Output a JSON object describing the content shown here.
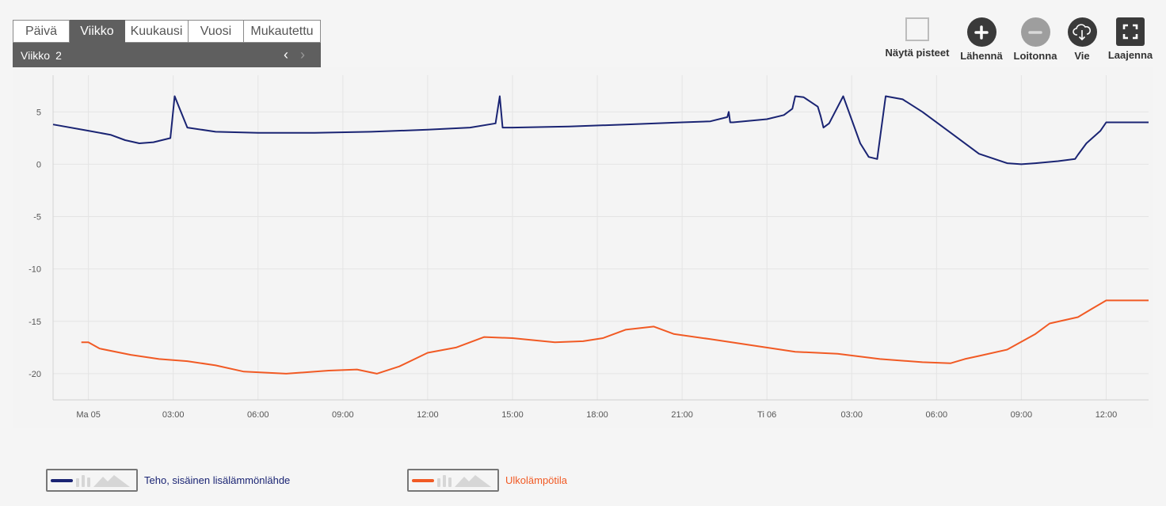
{
  "period_tabs": [
    "Päivä",
    "Viikko",
    "Kuukausi",
    "Vuosi",
    "Mukautettu"
  ],
  "active_tab": "Viikko",
  "week": {
    "label": "Viikko",
    "number": "2",
    "prev_symbol": "‹",
    "next_symbol": "›"
  },
  "toolbar": {
    "show_points": "Näytä pisteet",
    "zoom_in": "Lähennä",
    "zoom_out": "Loitonna",
    "export": "Vie",
    "expand": "Laajenna"
  },
  "icons": {
    "show_points": "checkbox-icon",
    "zoom_in": "plus-icon",
    "zoom_out": "minus-icon",
    "export": "cloud-download-icon",
    "expand": "fullscreen-icon"
  },
  "colors": {
    "series_heating": "#1a2473",
    "series_outdoor": "#f15a24",
    "grid": "#e4e4e4",
    "button_dark": "#3a3a3a",
    "button_disabled": "#9e9e9e"
  },
  "chart_data": {
    "type": "line",
    "title": "",
    "xlabel": "",
    "ylabel": "",
    "ylim": [
      -22.5,
      8.5
    ],
    "xlim_hours": [
      -1.25,
      37.5
    ],
    "y_ticks": [
      5,
      0,
      -5,
      -10,
      -15,
      -20
    ],
    "y_tick_labels": [
      "5",
      "0",
      "-5",
      "-10",
      "-15",
      "-20"
    ],
    "x_ticks_hours": [
      0,
      3,
      6,
      9,
      12,
      15,
      18,
      21,
      24,
      27,
      30,
      33,
      36
    ],
    "x_tick_labels": [
      "Ma 05",
      "03:00",
      "06:00",
      "09:00",
      "12:00",
      "15:00",
      "18:00",
      "21:00",
      "Ti 06",
      "03:00",
      "06:00",
      "09:00",
      "12:00"
    ],
    "grid": true,
    "legend_position": "bottom-left",
    "series": [
      {
        "name": "Teho, sisäinen lisälämmönlähde",
        "color": "#1a2473",
        "x": [
          -1.25,
          0.0,
          0.8,
          1.3,
          1.8,
          2.3,
          2.9,
          3.05,
          3.2,
          3.5,
          4.5,
          6.0,
          8.0,
          10.0,
          12.0,
          13.5,
          14.4,
          14.55,
          14.65,
          15.0,
          17.0,
          19.0,
          21.0,
          22.0,
          22.6,
          22.65,
          22.7,
          22.8,
          24.0,
          24.6,
          24.9,
          25.0,
          25.3,
          25.8,
          25.9,
          26.0,
          26.2,
          26.7,
          27.3,
          27.6,
          27.9,
          28.2,
          28.8,
          29.5,
          30.5,
          31.5,
          32.5,
          33.0,
          33.5,
          34.3,
          34.9,
          35.0,
          35.3,
          35.8,
          36.0,
          37.5
        ],
        "values": [
          3.8,
          3.2,
          2.8,
          2.3,
          2.0,
          2.1,
          2.5,
          6.5,
          5.5,
          3.5,
          3.1,
          3.0,
          3.0,
          3.1,
          3.3,
          3.5,
          3.9,
          6.5,
          3.5,
          3.5,
          3.6,
          3.8,
          4.0,
          4.1,
          4.5,
          5.0,
          4.0,
          4.0,
          4.3,
          4.7,
          5.3,
          6.5,
          6.4,
          5.5,
          4.6,
          3.5,
          3.9,
          6.5,
          2.0,
          0.7,
          0.5,
          6.5,
          6.2,
          5.0,
          3.0,
          1.0,
          0.1,
          0.0,
          0.1,
          0.3,
          0.5,
          0.9,
          2.0,
          3.2,
          4.0,
          4.0
        ]
      },
      {
        "name": "Ulkolämpötila",
        "color": "#f15a24",
        "x": [
          -0.25,
          0.0,
          0.4,
          1.5,
          2.5,
          3.5,
          4.5,
          5.5,
          7.0,
          8.5,
          9.5,
          10.2,
          11.0,
          12.0,
          13.0,
          14.0,
          15.0,
          16.5,
          17.5,
          18.2,
          19.0,
          20.0,
          20.7,
          22.0,
          23.5,
          25.0,
          26.5,
          28.0,
          29.5,
          30.5,
          31.0,
          31.5,
          32.5,
          33.5,
          34.0,
          34.5,
          35.0,
          35.5,
          36.0,
          37.5
        ],
        "values": [
          -17.0,
          -17.0,
          -17.6,
          -18.2,
          -18.6,
          -18.8,
          -19.2,
          -19.8,
          -20.0,
          -19.7,
          -19.6,
          -20.0,
          -19.3,
          -18.0,
          -17.5,
          -16.5,
          -16.6,
          -17.0,
          -16.9,
          -16.6,
          -15.8,
          -15.5,
          -16.2,
          -16.7,
          -17.3,
          -17.9,
          -18.1,
          -18.6,
          -18.9,
          -19.0,
          -18.6,
          -18.3,
          -17.7,
          -16.2,
          -15.2,
          -14.9,
          -14.6,
          -13.8,
          -13.0,
          -13.0
        ]
      }
    ]
  }
}
